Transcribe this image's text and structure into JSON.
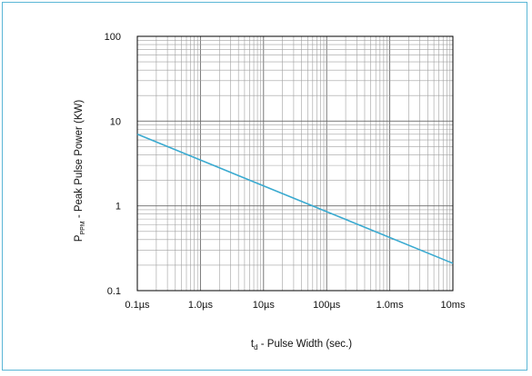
{
  "chart_data": {
    "type": "line",
    "x_scale": "log",
    "y_scale": "log",
    "xlim_seconds": [
      1e-07,
      0.01
    ],
    "ylim": [
      0.1,
      100
    ],
    "x_tick_values_seconds": [
      1e-07,
      1e-06,
      1e-05,
      0.0001,
      0.001,
      0.01
    ],
    "x_tick_labels": [
      "0.1µs",
      "1.0µs",
      "10µs",
      "100µs",
      "1.0ms",
      "10ms"
    ],
    "y_tick_values": [
      0.1,
      1,
      10,
      100
    ],
    "y_tick_labels": [
      "0.1",
      "1",
      "10",
      "100"
    ],
    "ylabel": {
      "main": "P",
      "sub": "PPM",
      "rest": " - Peak Pulse Power (KW)"
    },
    "xlabel": {
      "main": "t",
      "sub": "d",
      "rest": " - Pulse Width (sec.)"
    },
    "grid": true,
    "line_color": "#3aaad0",
    "series": [
      {
        "x_seconds": [
          1e-07,
          0.01
        ],
        "y": [
          7.0,
          0.21
        ]
      }
    ]
  }
}
